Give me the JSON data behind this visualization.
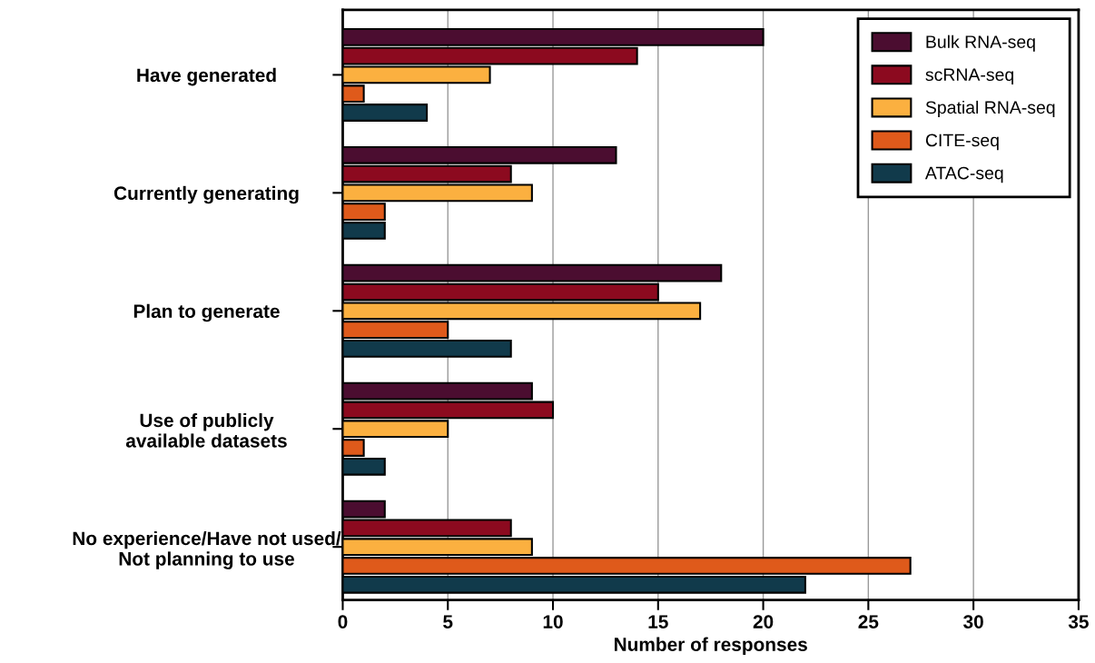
{
  "chart_data": {
    "type": "bar",
    "orientation": "horizontal",
    "xlabel": "Number of responses",
    "categories": [
      "Have generated",
      "Currently generating",
      "Plan to generate",
      "Use of publicly\navailable datasets",
      "No experience/Have not used/\nNot planning to use"
    ],
    "series": [
      {
        "name": "Bulk RNA-seq",
        "color": "#4b0d30",
        "values": [
          20,
          13,
          18,
          9,
          2
        ]
      },
      {
        "name": "scRNA-seq",
        "color": "#8c0a1f",
        "values": [
          14,
          8,
          15,
          10,
          8
        ]
      },
      {
        "name": "Spatial RNA-seq",
        "color": "#fbb040",
        "values": [
          7,
          9,
          17,
          5,
          9
        ]
      },
      {
        "name": "CITE-seq",
        "color": "#df5a1b",
        "values": [
          1,
          2,
          5,
          1,
          27
        ]
      },
      {
        "name": "ATAC-seq",
        "color": "#113a4b",
        "values": [
          4,
          2,
          8,
          2,
          22
        ]
      }
    ],
    "xlim": [
      0,
      35
    ],
    "xticks": [
      0,
      5,
      10,
      15,
      20,
      25,
      30,
      35
    ],
    "grid": "x",
    "legend": "top right"
  }
}
